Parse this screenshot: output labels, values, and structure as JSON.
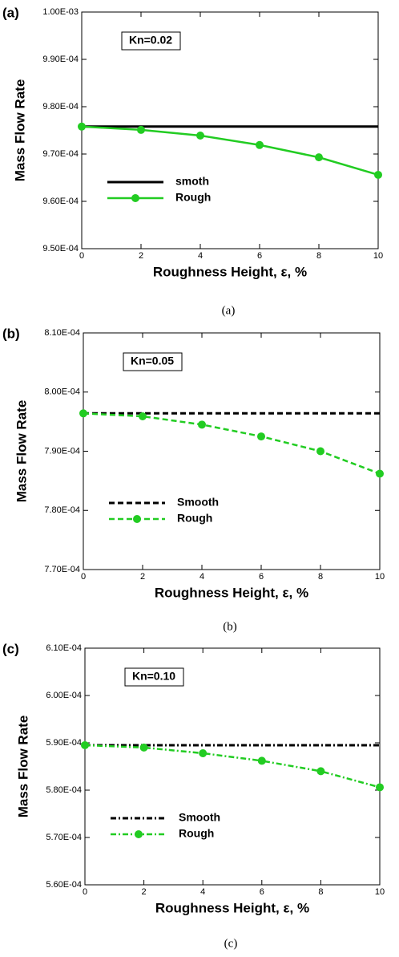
{
  "chart_data": [
    {
      "type": "line",
      "panel_label": "(a)",
      "caption": "(a)",
      "annotation": "Kn=0.02",
      "x_label": "Roughness Height, ε, %",
      "y_label": "Mass Flow Rate",
      "xlim": [
        0,
        10
      ],
      "xticks": [
        0,
        2,
        4,
        6,
        8,
        10
      ],
      "ylim": [
        0.00095,
        0.001
      ],
      "yticks": [
        {
          "value": 0.00095,
          "label": "9.50E-04"
        },
        {
          "value": 0.00096,
          "label": "9.60E-04"
        },
        {
          "value": 0.00097,
          "label": "9.70E-04"
        },
        {
          "value": 0.00098,
          "label": "9.80E-04"
        },
        {
          "value": 0.00099,
          "label": "9.90E-04"
        },
        {
          "value": 0.001,
          "label": "1.00E-03"
        }
      ],
      "x": [
        0,
        2,
        4,
        6,
        8,
        10
      ],
      "series": [
        {
          "name": "smoth",
          "color": "#000000",
          "dash": "solid",
          "marker": false,
          "values": [
            0.0009758,
            0.0009758,
            0.0009758,
            0.0009758,
            0.0009758,
            0.0009758
          ]
        },
        {
          "name": "Rough",
          "color": "#22cc22",
          "dash": "solid",
          "marker": true,
          "values": [
            0.0009758,
            0.0009751,
            0.0009739,
            0.0009719,
            0.0009693,
            0.0009656
          ]
        }
      ]
    },
    {
      "type": "line",
      "panel_label": "(b)",
      "caption": "(b)",
      "annotation": "Kn=0.05",
      "x_label": "Roughness Height, ε, %",
      "y_label": "Mass Flow Rate",
      "xlim": [
        0,
        10
      ],
      "xticks": [
        0,
        2,
        4,
        6,
        8,
        10
      ],
      "ylim": [
        0.00077,
        0.00081
      ],
      "yticks": [
        {
          "value": 0.00077,
          "label": "7.70E-04"
        },
        {
          "value": 0.00078,
          "label": "7.80E-04"
        },
        {
          "value": 0.00079,
          "label": "7.90E-04"
        },
        {
          "value": 0.0008,
          "label": "8.00E-04"
        },
        {
          "value": 0.00081,
          "label": "8.10E-04"
        }
      ],
      "x": [
        0,
        2,
        4,
        6,
        8,
        10
      ],
      "series": [
        {
          "name": "Smooth",
          "color": "#000000",
          "dash": "dashed",
          "marker": false,
          "values": [
            0.0007964,
            0.0007964,
            0.0007964,
            0.0007964,
            0.0007964,
            0.0007964
          ]
        },
        {
          "name": "Rough",
          "color": "#22cc22",
          "dash": "dashed",
          "marker": true,
          "values": [
            0.0007964,
            0.0007959,
            0.0007945,
            0.0007925,
            0.00079,
            0.0007862
          ]
        }
      ]
    },
    {
      "type": "line",
      "panel_label": "(c)",
      "caption": "(c)",
      "annotation": "Kn=0.10",
      "x_label": "Roughness Height, ε, %",
      "y_label": "Mass Flow Rate",
      "xlim": [
        0,
        10
      ],
      "xticks": [
        0,
        2,
        4,
        6,
        8,
        10
      ],
      "ylim": [
        0.00056,
        0.00061
      ],
      "yticks": [
        {
          "value": 0.00056,
          "label": "5.60E-04"
        },
        {
          "value": 0.00057,
          "label": "5.70E-04"
        },
        {
          "value": 0.00058,
          "label": "5.80E-04"
        },
        {
          "value": 0.00059,
          "label": "5.90E-04"
        },
        {
          "value": 0.0006,
          "label": "6.00E-04"
        },
        {
          "value": 0.00061,
          "label": "6.10E-04"
        }
      ],
      "x": [
        0,
        2,
        4,
        6,
        8,
        10
      ],
      "series": [
        {
          "name": "Smooth",
          "color": "#000000",
          "dash": "dashdot",
          "marker": false,
          "values": [
            0.0005895,
            0.0005895,
            0.0005895,
            0.0005895,
            0.0005895,
            0.0005895
          ]
        },
        {
          "name": "Rough",
          "color": "#22cc22",
          "dash": "dashdot",
          "marker": true,
          "values": [
            0.0005895,
            0.000589,
            0.0005878,
            0.0005862,
            0.000584,
            0.0005806
          ]
        }
      ]
    }
  ]
}
